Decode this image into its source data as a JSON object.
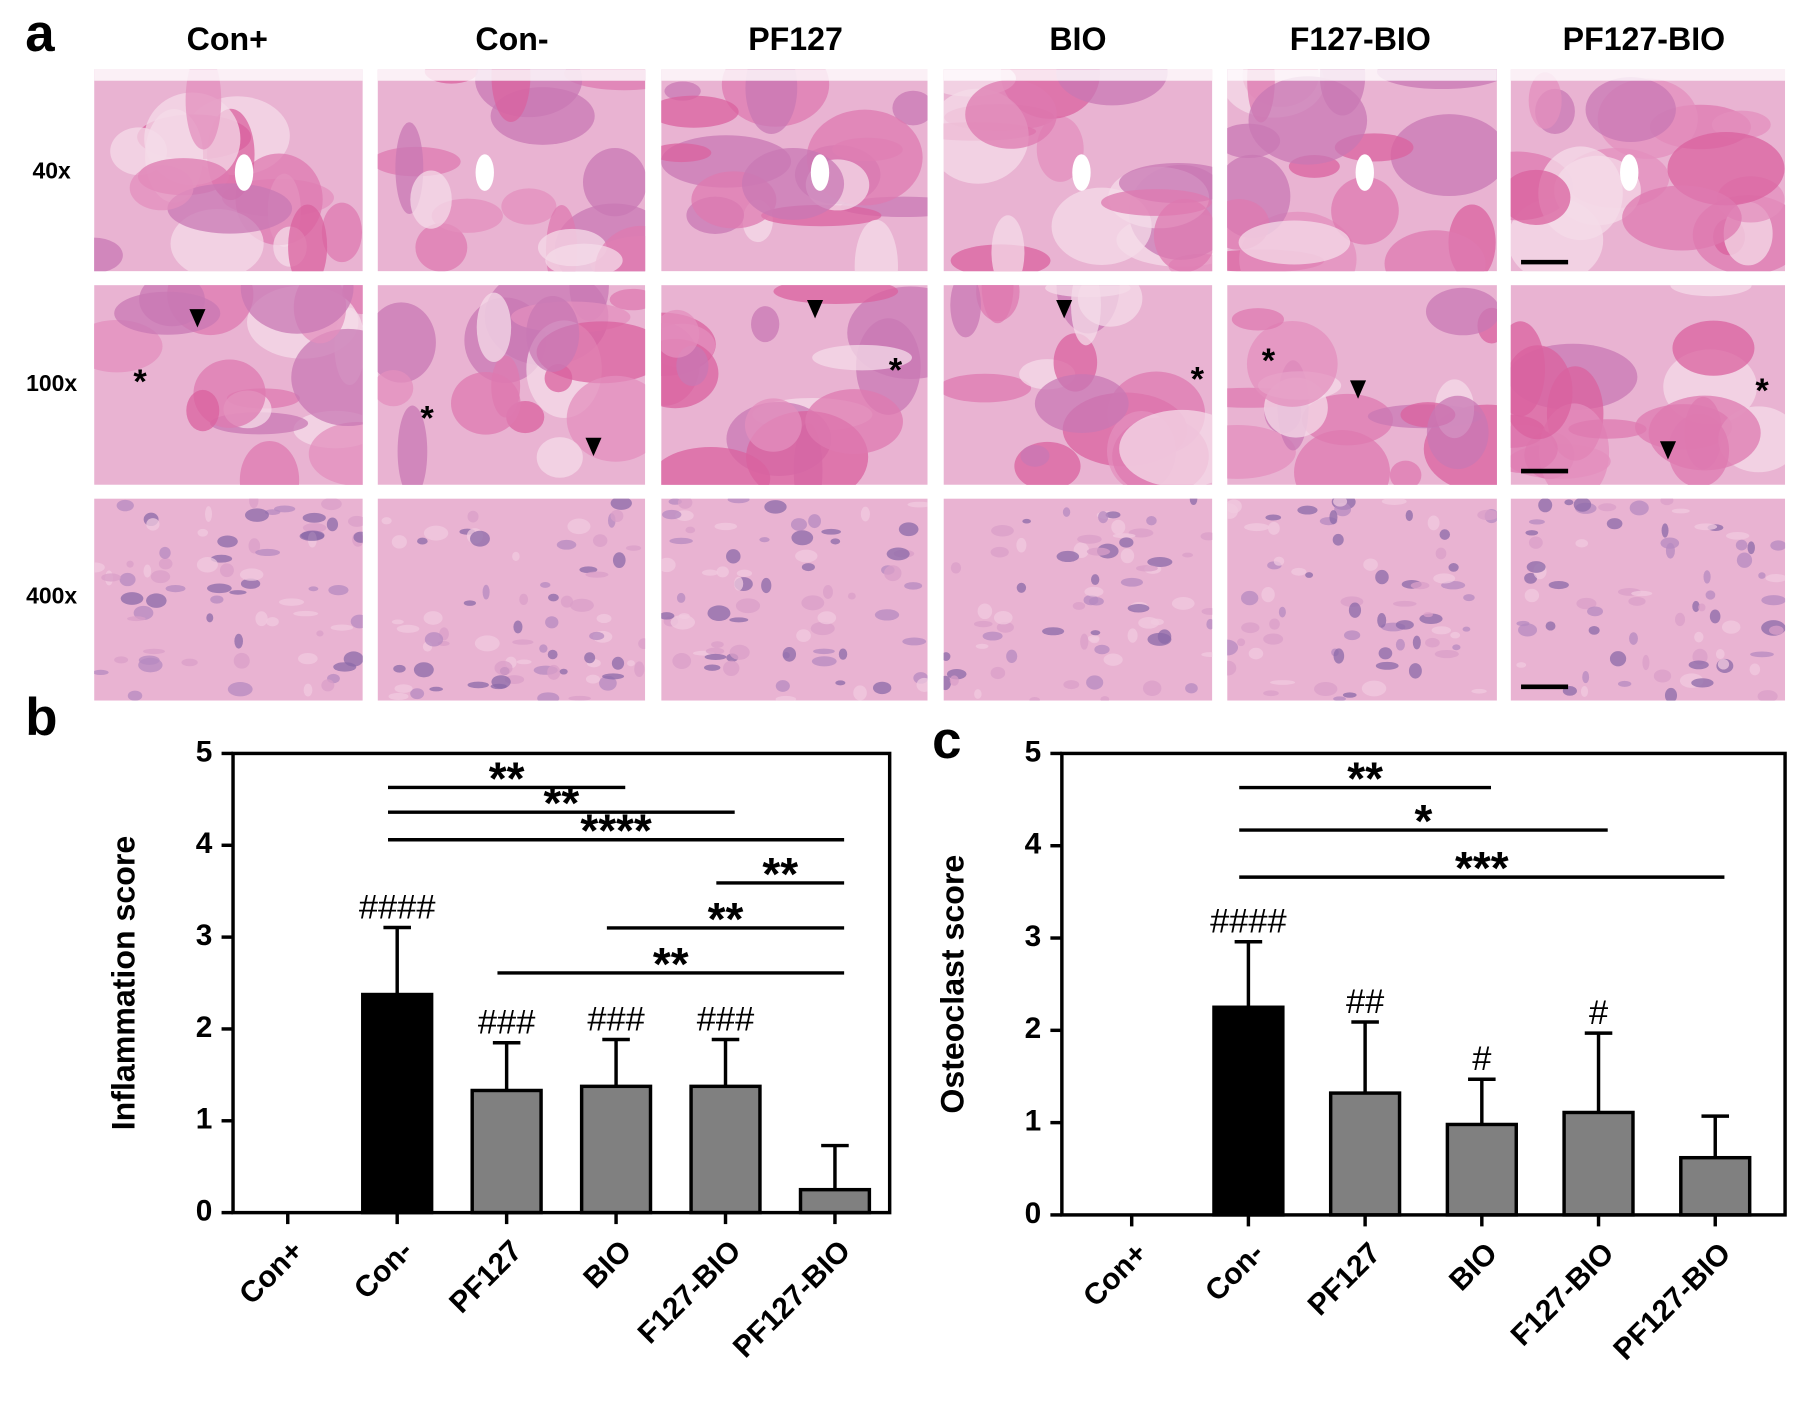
{
  "panel_a": {
    "label": "a",
    "columns": [
      "Con+",
      "Con-",
      "PF127",
      "BIO",
      "F127-BIO",
      "PF127-BIO"
    ],
    "rows": [
      "40x",
      "100x",
      "400x"
    ],
    "marker": "*"
  },
  "chart_data": [
    {
      "type": "bar",
      "panel_label": "b",
      "y_label": "Inflammation score",
      "categories": [
        "Con+",
        "Con-",
        "PF127",
        "BIO",
        "F127-BIO",
        "PF127-BIO"
      ],
      "values": [
        0,
        2.375,
        1.33,
        1.375,
        1.375,
        0.25
      ],
      "errors": [
        0,
        0.73,
        0.52,
        0.51,
        0.51,
        0.48
      ],
      "colors": [
        "#808080",
        "#000000",
        "#808080",
        "#808080",
        "#808080",
        "#808080"
      ],
      "significance": [
        null,
        "####",
        "###",
        "###",
        "###",
        null
      ],
      "comparisons": [
        {
          "from": 1,
          "to": 3,
          "y": 4.63,
          "label": "**"
        },
        {
          "from": 1,
          "to": 4,
          "y": 4.36,
          "label": "**"
        },
        {
          "from": 1,
          "to": 5,
          "y": 4.06,
          "label": "****"
        },
        {
          "from": 4,
          "to": 5,
          "y": 3.59,
          "label": "**"
        },
        {
          "from": 3,
          "to": 5,
          "y": 3.1,
          "label": "**"
        },
        {
          "from": 2,
          "to": 5,
          "y": 2.61,
          "label": "**"
        }
      ],
      "ylim": [
        0,
        5
      ],
      "yticks": [
        0,
        1,
        2,
        3,
        4,
        5
      ]
    },
    {
      "type": "bar",
      "panel_label": "c",
      "y_label": "Osteoclast score",
      "categories": [
        "Con+",
        "Con-",
        "PF127",
        "BIO",
        "F127-BIO",
        "PF127-BIO"
      ],
      "values": [
        0,
        2.25,
        1.32,
        0.98,
        1.11,
        0.62
      ],
      "errors": [
        0,
        0.71,
        0.77,
        0.49,
        0.86,
        0.45
      ],
      "colors": [
        "#808080",
        "#000000",
        "#808080",
        "#808080",
        "#808080",
        "#808080"
      ],
      "significance": [
        null,
        "####",
        "##",
        "#",
        "#",
        null
      ],
      "comparisons": [
        {
          "from": 1,
          "to": 3,
          "y": 4.63,
          "label": "**"
        },
        {
          "from": 1,
          "to": 4,
          "y": 4.17,
          "label": "*"
        },
        {
          "from": 1,
          "to": 5,
          "y": 3.66,
          "label": "***"
        }
      ],
      "ylim": [
        0,
        5
      ],
      "yticks": [
        0,
        1,
        2,
        3,
        4,
        5
      ]
    }
  ]
}
